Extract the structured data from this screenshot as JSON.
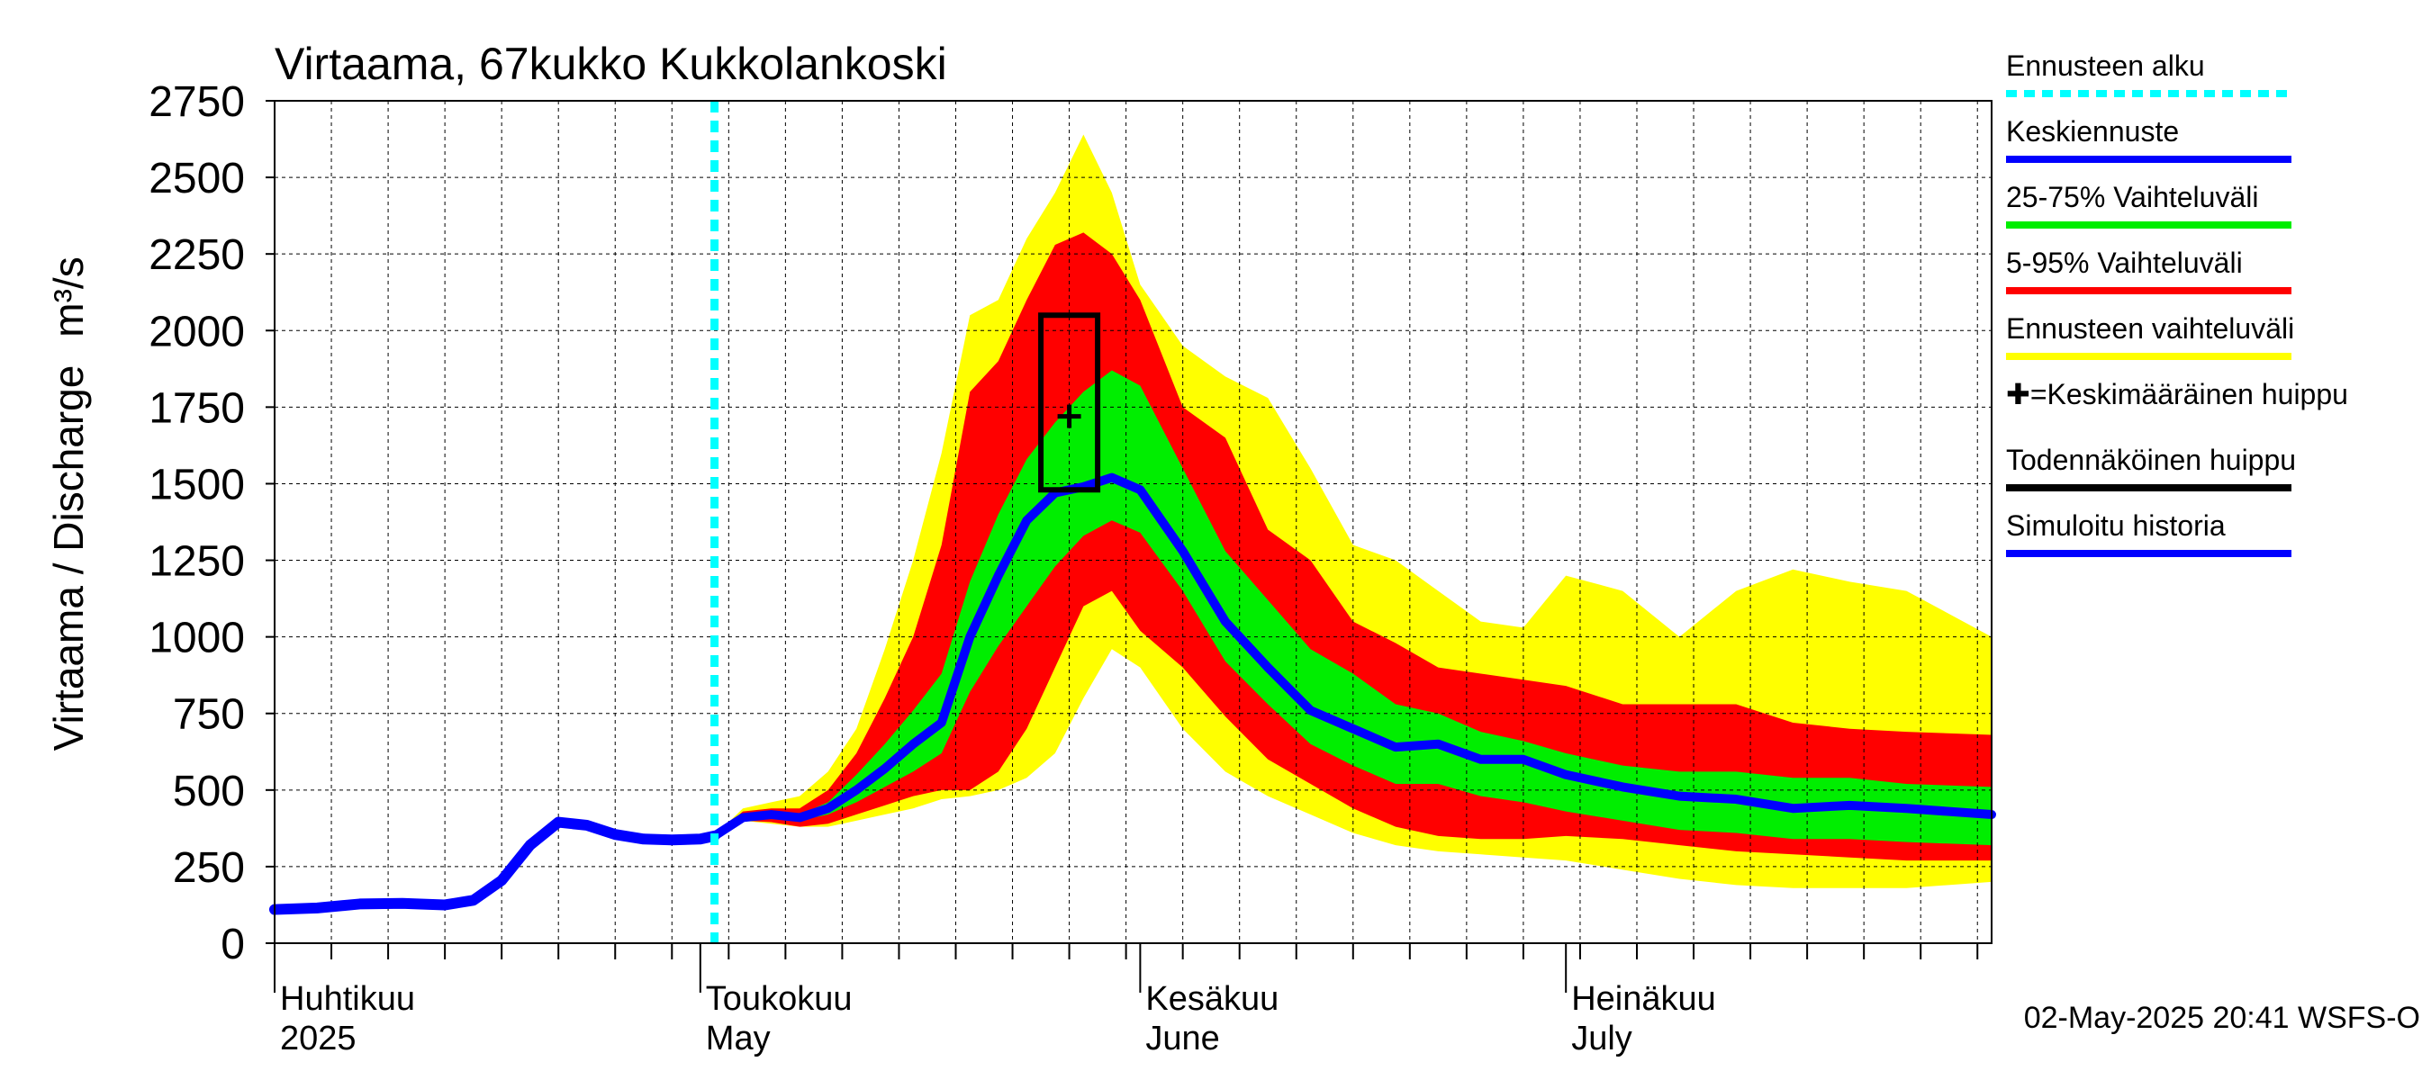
{
  "chart_data": {
    "type": "area",
    "title": "Virtaama, 67kukko Kukkolankoski",
    "ylabel_text": "Virtaama / Discharge",
    "ylabel_unit": "m³/s",
    "xlim": [
      "2025-04-01",
      "2025-07-31"
    ],
    "ylim": [
      0,
      2750
    ],
    "y_ticks": [
      0,
      250,
      500,
      750,
      1000,
      1250,
      1500,
      1750,
      2000,
      2250,
      2500,
      2750
    ],
    "grid": true,
    "legend_position": "right",
    "month_ticks": [
      {
        "date": "2025-04-01",
        "fi": "Huhtikuu",
        "en": "2025"
      },
      {
        "date": "2025-05-01",
        "fi": "Toukokuu",
        "en": "May"
      },
      {
        "date": "2025-06-01",
        "fi": "Kesäkuu",
        "en": "June"
      },
      {
        "date": "2025-07-01",
        "fi": "Heinäkuu",
        "en": "July"
      }
    ],
    "forecast_start": "2025-05-02",
    "footer": "02-May-2025 20:41 WSFS-O",
    "colors": {
      "range_full": "#ffff00",
      "range_5_95": "#ff0000",
      "range_25_75": "#00ee00",
      "median": "#0000ff",
      "history": "#0000ff",
      "forecast_start": "#00ffff",
      "peak": "#000000"
    },
    "legend": [
      {
        "label": "Ennusteen alku",
        "color": "#00ffff",
        "style": "dotted"
      },
      {
        "label": "Keskiennuste",
        "color": "#0000ff",
        "style": "solid"
      },
      {
        "label": "25-75% Vaihteluväli",
        "color": "#00ee00",
        "style": "solid"
      },
      {
        "label": "5-95% Vaihteluväli",
        "color": "#ff0000",
        "style": "solid"
      },
      {
        "label": "Ennusteen vaihteluväli",
        "color": "#ffff00",
        "style": "solid"
      },
      {
        "label": "✚=Keskimääräinen huippu",
        "color": "",
        "style": "none"
      },
      {
        "label": "Todennäköinen huippu",
        "color": "#000000",
        "style": "solid"
      },
      {
        "label": "Simuloitu historia",
        "color": "#0000ff",
        "style": "solid"
      }
    ],
    "history": {
      "x": [
        "2025-04-01",
        "2025-04-04",
        "2025-04-07",
        "2025-04-10",
        "2025-04-13",
        "2025-04-15",
        "2025-04-17",
        "2025-04-19",
        "2025-04-21",
        "2025-04-23",
        "2025-04-25",
        "2025-04-27",
        "2025-04-29",
        "2025-05-01",
        "2025-05-02"
      ],
      "y": [
        110,
        115,
        128,
        130,
        125,
        140,
        205,
        320,
        395,
        385,
        355,
        340,
        337,
        340,
        350
      ]
    },
    "forecast": {
      "x": [
        "2025-05-02",
        "2025-05-04",
        "2025-05-06",
        "2025-05-08",
        "2025-05-10",
        "2025-05-12",
        "2025-05-14",
        "2025-05-16",
        "2025-05-18",
        "2025-05-20",
        "2025-05-22",
        "2025-05-24",
        "2025-05-26",
        "2025-05-28",
        "2025-05-30",
        "2025-06-01",
        "2025-06-04",
        "2025-06-07",
        "2025-06-10",
        "2025-06-13",
        "2025-06-16",
        "2025-06-19",
        "2025-06-22",
        "2025-06-25",
        "2025-06-28",
        "2025-07-01",
        "2025-07-05",
        "2025-07-09",
        "2025-07-13",
        "2025-07-17",
        "2025-07-21",
        "2025-07-25",
        "2025-07-31"
      ],
      "median": [
        350,
        410,
        420,
        410,
        440,
        500,
        570,
        650,
        720,
        1000,
        1200,
        1380,
        1470,
        1490,
        1520,
        1480,
        1280,
        1050,
        900,
        760,
        700,
        640,
        650,
        600,
        600,
        550,
        510,
        480,
        470,
        440,
        450,
        440,
        420
      ],
      "p25": [
        350,
        405,
        410,
        400,
        420,
        460,
        510,
        560,
        620,
        820,
        970,
        1100,
        1230,
        1330,
        1380,
        1340,
        1150,
        920,
        780,
        650,
        580,
        520,
        520,
        480,
        460,
        430,
        400,
        370,
        360,
        340,
        340,
        330,
        320
      ],
      "p75": [
        350,
        420,
        430,
        420,
        460,
        550,
        650,
        760,
        880,
        1180,
        1400,
        1580,
        1700,
        1800,
        1870,
        1820,
        1550,
        1280,
        1120,
        960,
        880,
        780,
        750,
        690,
        660,
        620,
        580,
        560,
        560,
        540,
        540,
        520,
        510
      ],
      "p5": [
        350,
        400,
        395,
        380,
        390,
        420,
        450,
        480,
        500,
        500,
        560,
        700,
        900,
        1100,
        1150,
        1020,
        900,
        740,
        600,
        520,
        440,
        380,
        350,
        340,
        340,
        350,
        340,
        320,
        300,
        290,
        280,
        270,
        270
      ],
      "p95": [
        350,
        430,
        440,
        440,
        500,
        620,
        800,
        1000,
        1300,
        1800,
        1900,
        2100,
        2280,
        2320,
        2250,
        2100,
        1750,
        1650,
        1350,
        1250,
        1050,
        980,
        900,
        880,
        860,
        840,
        780,
        780,
        780,
        720,
        700,
        690,
        680
      ],
      "min": [
        350,
        400,
        390,
        380,
        380,
        400,
        420,
        440,
        470,
        480,
        500,
        540,
        620,
        800,
        960,
        900,
        700,
        560,
        480,
        420,
        360,
        320,
        300,
        290,
        280,
        270,
        240,
        210,
        190,
        180,
        180,
        180,
        200
      ],
      "max": [
        350,
        440,
        460,
        480,
        560,
        700,
        960,
        1250,
        1600,
        2050,
        2100,
        2300,
        2450,
        2640,
        2450,
        2150,
        1950,
        1850,
        1780,
        1550,
        1300,
        1250,
        1150,
        1050,
        1030,
        1200,
        1150,
        1000,
        1150,
        1220,
        1180,
        1150,
        1000
      ]
    },
    "mean_peak": {
      "x": "2025-05-27",
      "y": 1720
    },
    "probable_peak": {
      "x_start": "2025-05-25",
      "x_end": "2025-05-29",
      "y_low": 1480,
      "y_high": 2050
    }
  }
}
